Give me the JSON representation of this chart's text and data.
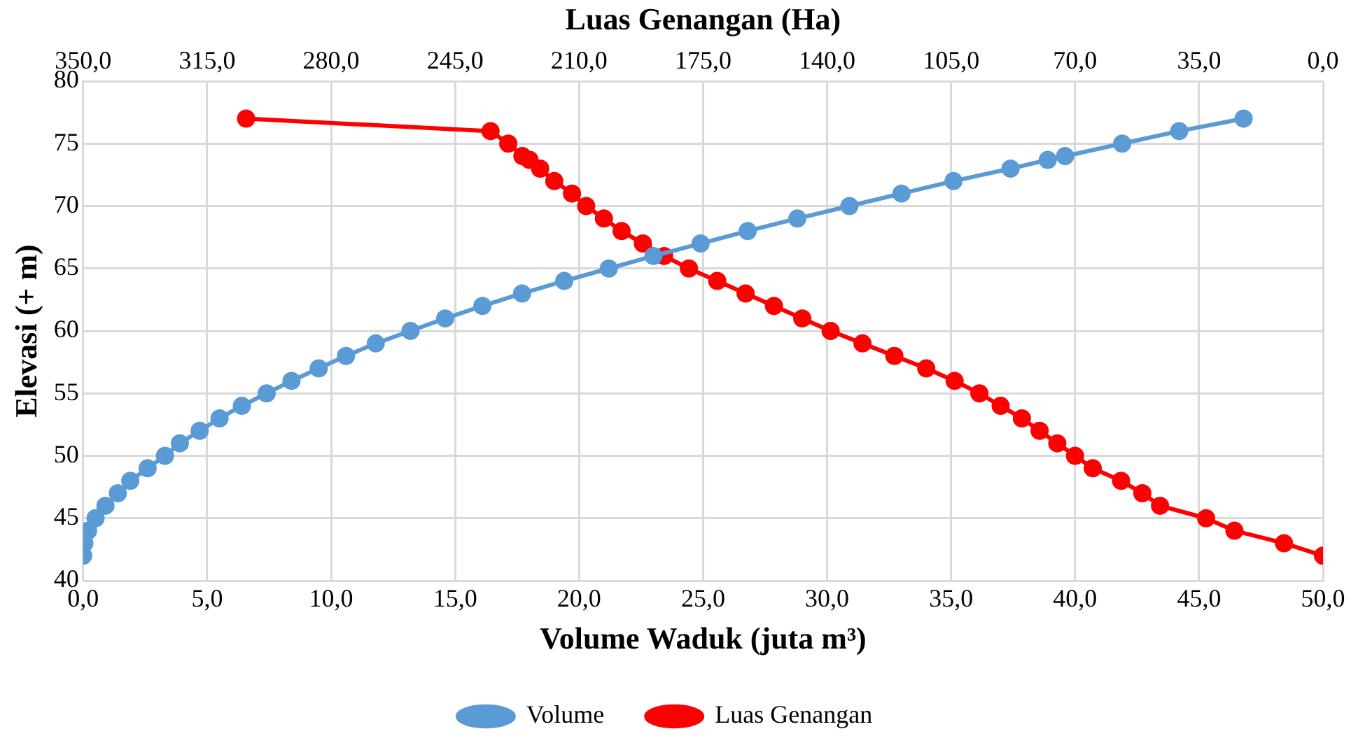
{
  "chart_data": {
    "type": "line",
    "xlabel": "Volume Waduk (juta m³)",
    "ylabel": "Elevasi (+ m)",
    "x2label": "Luas Genangan (Ha)",
    "xlim": [
      0,
      50
    ],
    "xticks": [
      {
        "value": 0,
        "label": "0,0"
      },
      {
        "value": 5,
        "label": "5,0"
      },
      {
        "value": 10,
        "label": "10,0"
      },
      {
        "value": 15,
        "label": "15,0"
      },
      {
        "value": 20,
        "label": "20,0"
      },
      {
        "value": 25,
        "label": "25,0"
      },
      {
        "value": 30,
        "label": "30,0"
      },
      {
        "value": 35,
        "label": "35,0"
      },
      {
        "value": 40,
        "label": "40,0"
      },
      {
        "value": 45,
        "label": "45,0"
      },
      {
        "value": 50,
        "label": "50,0"
      }
    ],
    "x2lim": [
      350,
      0
    ],
    "x2ticks": [
      {
        "value": 350,
        "label": "350,0"
      },
      {
        "value": 315,
        "label": "315,0"
      },
      {
        "value": 280,
        "label": "280,0"
      },
      {
        "value": 245,
        "label": "245,0"
      },
      {
        "value": 210,
        "label": "210,0"
      },
      {
        "value": 175,
        "label": "175,0"
      },
      {
        "value": 140,
        "label": "140,0"
      },
      {
        "value": 105,
        "label": "105,0"
      },
      {
        "value": 70,
        "label": "70,0"
      },
      {
        "value": 35,
        "label": "35,0"
      },
      {
        "value": 0,
        "label": "0,0"
      }
    ],
    "ylim": [
      40,
      80
    ],
    "yticks": [
      40,
      45,
      50,
      55,
      60,
      65,
      70,
      75,
      80
    ],
    "grid": true,
    "legend": "bottom",
    "marker": "circle",
    "line_style": "solid",
    "series": [
      {
        "name": "Volume",
        "color": "#5b9bd5",
        "x": [
          0,
          0.05,
          0.2,
          0.5,
          0.9,
          1.4,
          1.9,
          2.6,
          3.3,
          3.9,
          4.7,
          5.5,
          6.4,
          7.4,
          8.4,
          9.5,
          10.6,
          11.8,
          13.2,
          14.6,
          16.1,
          17.7,
          19.4,
          21.2,
          23.0,
          24.9,
          26.8,
          28.8,
          30.9,
          33.0,
          35.1,
          37.4,
          38.9,
          39.6,
          41.9,
          44.2,
          46.8
        ],
        "values": [
          42,
          43,
          44,
          45,
          46,
          47,
          48,
          49,
          50,
          51,
          52,
          53,
          54,
          55,
          56,
          57,
          58,
          59,
          60,
          61,
          62,
          63,
          64,
          65,
          66,
          67,
          68,
          69,
          70,
          71,
          72,
          73,
          73.7,
          74,
          75,
          76,
          77
        ]
      },
      {
        "name": "Luas Genangan",
        "color": "#ff0000",
        "axis": "x2",
        "x": [
          304,
          235,
          230,
          226,
          224,
          221,
          217,
          212,
          208,
          203,
          198,
          192,
          186,
          179,
          171,
          163,
          155,
          147,
          139,
          130,
          121,
          112,
          104,
          97,
          91,
          85,
          80,
          75,
          70,
          65,
          57,
          51,
          46,
          33,
          25,
          11,
          0
        ],
        "values": [
          77,
          76,
          75,
          74,
          73.7,
          73,
          72,
          71,
          70,
          69,
          68,
          67,
          66,
          65,
          64,
          63,
          62,
          61,
          60,
          59,
          58,
          57,
          56,
          55,
          54,
          53,
          52,
          51,
          50,
          49,
          48,
          47,
          46,
          45,
          44,
          43,
          42
        ]
      }
    ]
  }
}
